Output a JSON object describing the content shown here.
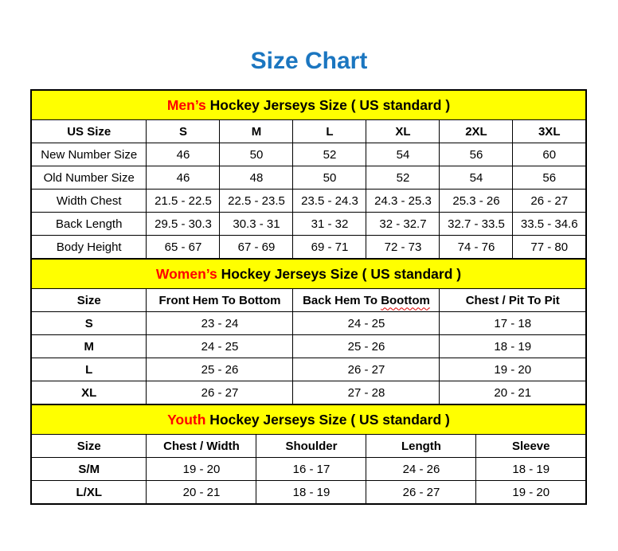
{
  "page": {
    "title": "Size Chart",
    "title_color": "#1b76c0",
    "section_band_color": "#ffff00",
    "section_highlight_color": "#ff0000",
    "typo_underline_color": "#e00000"
  },
  "tables": [
    {
      "id": "mens",
      "section_title": {
        "highlight": "Men’s",
        "rest": " Hockey Jerseys Size ( US standard )"
      },
      "columns": [
        "US Size",
        "S",
        "M",
        "L",
        "XL",
        "2XL",
        "3XL"
      ],
      "col_widths": [
        "20.8%",
        "13.2%",
        "13.2%",
        "13.2%",
        "13.2%",
        "13.2%",
        "13.2%"
      ],
      "rows": [
        {
          "label": "New Number Size",
          "values": [
            "46",
            "50",
            "52",
            "54",
            "56",
            "60"
          ]
        },
        {
          "label": "Old Number Size",
          "values": [
            "46",
            "48",
            "50",
            "52",
            "54",
            "56"
          ]
        },
        {
          "label": "Width Chest",
          "values": [
            "21.5 - 22.5",
            "22.5 - 23.5",
            "23.5 - 24.3",
            "24.3 - 25.3",
            "25.3 - 26",
            "26 - 27"
          ]
        },
        {
          "label": "Back Length",
          "values": [
            "29.5 - 30.3",
            "30.3 - 31",
            "31 - 32",
            "32 - 32.7",
            "32.7 - 33.5",
            "33.5 - 34.6"
          ]
        },
        {
          "label": "Body Height",
          "values": [
            "65 - 67",
            "67 - 69",
            "69 - 71",
            "72 - 73",
            "74 - 76",
            "77 - 80"
          ]
        }
      ]
    },
    {
      "id": "womens",
      "section_title": {
        "highlight": "Women’s",
        "rest": " Hockey Jerseys Size ( US standard )"
      },
      "columns": [
        "Size",
        "Front Hem To Bottom",
        "Back Hem To Boottom",
        "Chest / Pit To Pit"
      ],
      "typo": {
        "column_index": 2,
        "word": "Boottom"
      },
      "col_widths": [
        "20.8%",
        "26.4%",
        "26.4%",
        "26.4%"
      ],
      "rows": [
        {
          "label": "S",
          "values": [
            "23 - 24",
            "24 - 25",
            "17 - 18"
          ]
        },
        {
          "label": "M",
          "values": [
            "24 - 25",
            "25 - 26",
            "18 - 19"
          ]
        },
        {
          "label": "L",
          "values": [
            "25 - 26",
            "26 - 27",
            "19 - 20"
          ]
        },
        {
          "label": "XL",
          "values": [
            "26 - 27",
            "27 - 28",
            "20 - 21"
          ]
        }
      ]
    },
    {
      "id": "youth",
      "section_title": {
        "highlight": "Youth",
        "rest": " Hockey Jerseys Size ( US standard )"
      },
      "columns": [
        "Size",
        "Chest / Width",
        "Shoulder",
        "Length",
        "Sleeve"
      ],
      "col_widths": [
        "20.8%",
        "19.8%",
        "19.8%",
        "19.8%",
        "19.8%"
      ],
      "rows": [
        {
          "label": "S/M",
          "values": [
            "19 - 20",
            "16 - 17",
            "24 - 26",
            "18 - 19"
          ]
        },
        {
          "label": "L/XL",
          "values": [
            "20 - 21",
            "18 - 19",
            "26 - 27",
            "19 - 20"
          ]
        }
      ]
    }
  ]
}
